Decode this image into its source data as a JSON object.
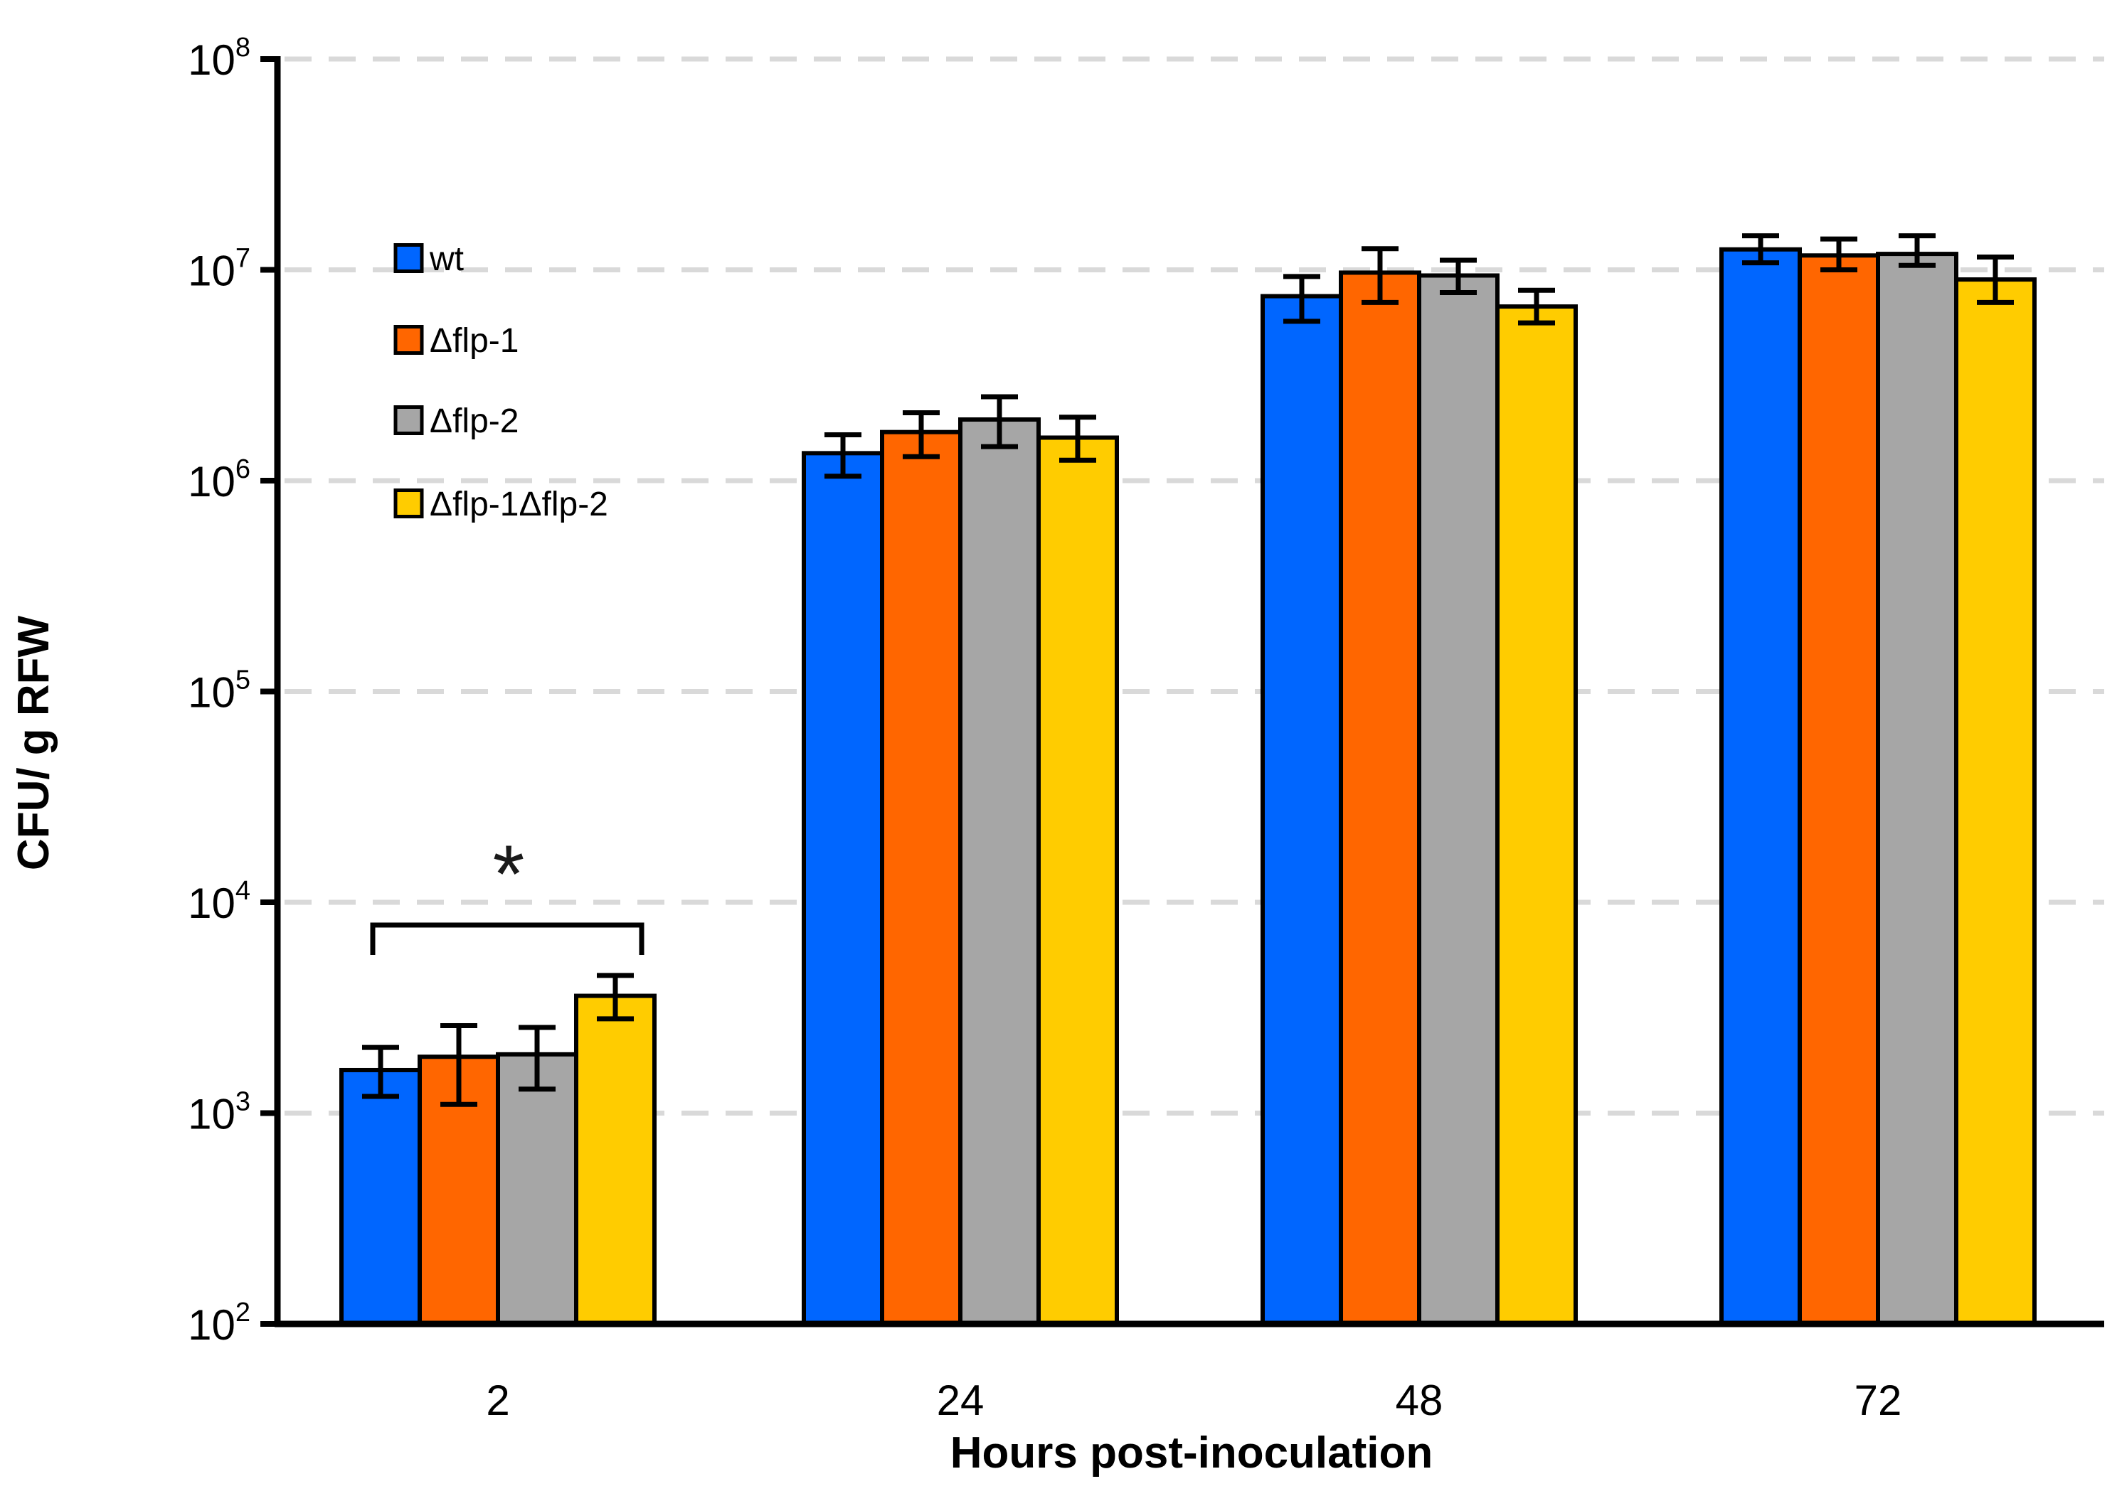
{
  "chart_data": {
    "type": "bar",
    "title": "",
    "xlabel": "Hours post-inoculation",
    "ylabel": "CFU/ g RFW",
    "yscale": "log",
    "ylim": [
      100,
      100000000
    ],
    "ytick_base": "10",
    "ytick_exponents": [
      2,
      3,
      4,
      5,
      6,
      7,
      8
    ],
    "grid": "dashed-horizontal",
    "gridline_color": "#D9D9D9",
    "axis_color": "#000000",
    "legend_position": "upper-left-inside",
    "categories": [
      "2",
      "24",
      "48",
      "72"
    ],
    "series": [
      {
        "name": "wt",
        "color": "#0066FF",
        "values": [
          1600,
          1350000,
          7500000,
          12500000
        ],
        "err_lo": [
          1200,
          1050000,
          5700000,
          10800000
        ],
        "err_hi": [
          2050,
          1650000,
          9300000,
          14500000
        ]
      },
      {
        "name": "Δflp-1",
        "color": "#FF6600",
        "values": [
          1850,
          1700000,
          9700000,
          11700000
        ],
        "err_lo": [
          1100,
          1300000,
          7000000,
          10000000
        ],
        "err_hi": [
          2600,
          2100000,
          12600000,
          14000000
        ]
      },
      {
        "name": "Δflp-2",
        "color": "#A6A6A6",
        "values": [
          1900,
          1950000,
          9400000,
          11900000
        ],
        "err_lo": [
          1300,
          1450000,
          7800000,
          10500000
        ],
        "err_hi": [
          2550,
          2500000,
          11100000,
          14500000
        ]
      },
      {
        "name": "Δflp-1Δflp-2",
        "color": "#FFCC00",
        "values": [
          3600,
          1600000,
          6700000,
          9000000
        ],
        "err_lo": [
          2800,
          1250000,
          5600000,
          7000000
        ],
        "err_hi": [
          4500,
          2000000,
          8000000,
          11500000
        ]
      }
    ],
    "annotation": {
      "type": "significance-bracket",
      "label": "*",
      "category": "2",
      "from_series": "wt",
      "to_series": "Δflp-1Δflp-2",
      "bracket_y_value": 7800
    }
  }
}
